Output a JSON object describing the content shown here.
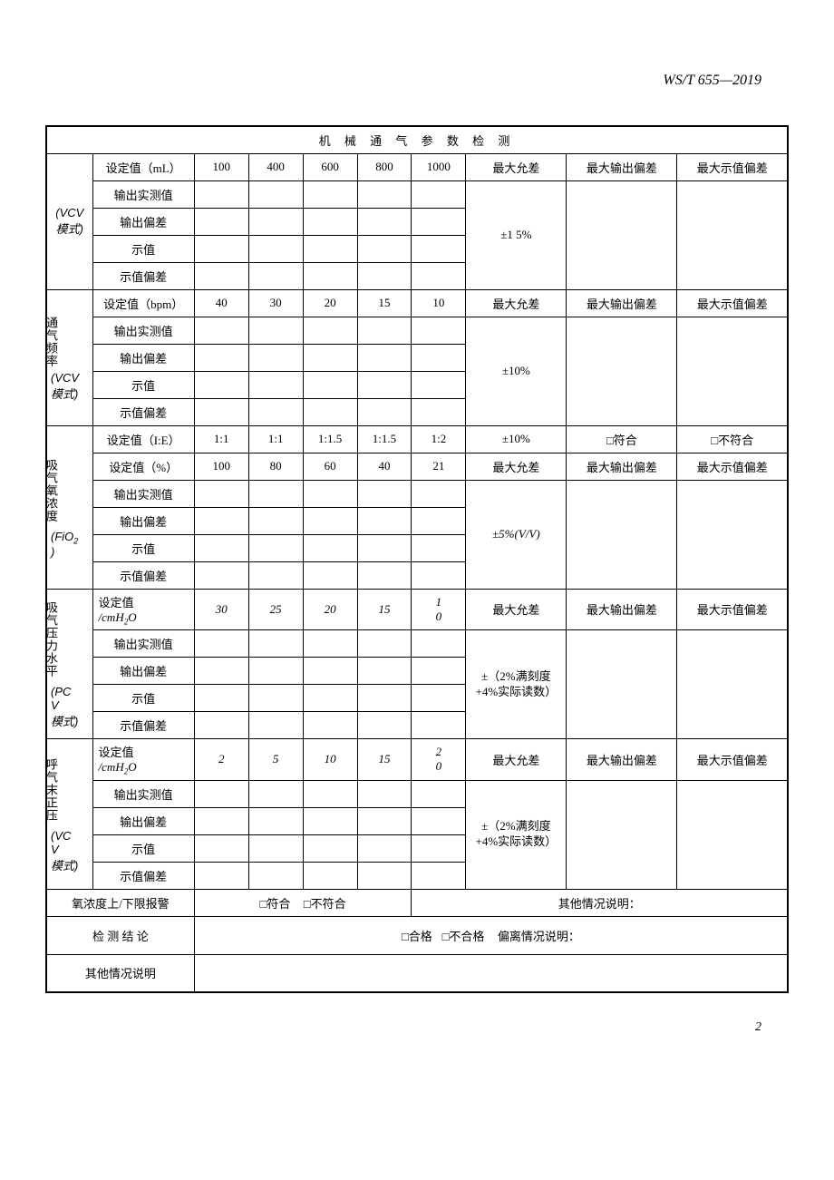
{
  "doc_code": "WS/T 655—2019",
  "page_number": "2",
  "table_title": "机 械 通 气 参 数 检 测",
  "row_labels": {
    "setval_ml": "设定值（mL）",
    "setval_bpm": "设定值（bpm）",
    "setval_ie": "设定值（I:E）",
    "setval_pct": "设定值（%）",
    "setval": "设定值",
    "unit_cmh2o": "/cmH",
    "sub2o": "2",
    "o_suffix": "O",
    "measured": "输出实测值",
    "out_dev": "输出偏差",
    "display": "示值",
    "disp_dev": "示值偏差",
    "max_tol": "最大允差",
    "max_out_dev": "最大输出偏差",
    "max_disp_dev": "最大示值偏差",
    "pass": "□符合",
    "fail": "□不符合",
    "pass_ok": "□合格",
    "fail_ok": "□不合格",
    "deviation_note": "偏离情况说明：",
    "other_note": "其他情况说明：",
    "o2_alarm": "氧浓度上/下限报警",
    "test_conclusion": "检 测 结 论",
    "other_explain": "其他情况说明"
  },
  "groups": {
    "vcv_mode": "(VCV\n模式)",
    "tongqi_pinlv": "通气频率",
    "xi_yang_nongdu": "吸气氧浓度",
    "fio2": "(FiO",
    "fio2_sub": "2",
    "fio2_close": ")",
    "xiqi_yali": "吸气压力水平",
    "pcv": "(PC\nV\n模式)",
    "huqi_mozheng": "呼气末正压",
    "vcv2": "(VC\nV\n模式)"
  },
  "s1": {
    "v1": "100",
    "v2": "400",
    "v3": "600",
    "v4": "800",
    "v5": "1000",
    "tol": "±1 5%"
  },
  "s2": {
    "v1": "40",
    "v2": "30",
    "v3": "20",
    "v4": "15",
    "v5": "10",
    "tol": "±10%"
  },
  "s3": {
    "v1": "1:1",
    "v2": "1:1",
    "v3": "1:1.5",
    "v4": "1:1.5",
    "v5": "1:2",
    "tol": "±10%"
  },
  "s4": {
    "v1": "100",
    "v2": "80",
    "v3": "60",
    "v4": "40",
    "v5": "21",
    "tol": "±5%(V/V)"
  },
  "s5": {
    "v1": "30",
    "v2": "25",
    "v3": "20",
    "v4": "15",
    "v5a": "1",
    "v5b": "0",
    "tol": "±（2%满刻度+4%实际读数）"
  },
  "s6": {
    "v1": "2",
    "v2": "5",
    "v3": "10",
    "v4": "15",
    "v5a": "2",
    "v5b": "0",
    "tol": "±（2%满刻度+4%实际读数）"
  }
}
